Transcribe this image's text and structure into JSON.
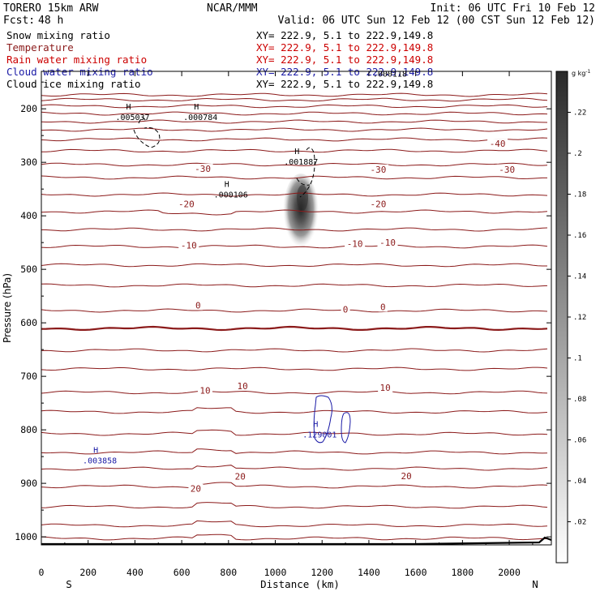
{
  "header": {
    "left_title": "TORERO  15km ARW",
    "center_title": "NCAR/MMM",
    "init": "Init: 06 UTC Fri 10 Feb 12",
    "fcst_label": "Fcst:",
    "fcst_value": "48 h",
    "valid": "Valid: 06 UTC Sun 12 Feb 12 (00 CST Sun 12 Feb 12)"
  },
  "legend": [
    {
      "name": "Snow mixing ratio",
      "color": "#000000",
      "xy": ""
    },
    {
      "name": "Temperature",
      "color": "#8b1a1a",
      "xy": "XY= 222.9,  5.1 to 222.9,149.8"
    },
    {
      "name": "Rain water mixing ratio",
      "color": "#cc0000",
      "xy": "XY= 222.9,  5.1 to 222.9,149.8"
    },
    {
      "name": "Cloud water mixing ratio",
      "color": "#1a1aa6",
      "xy": "XY= 222.9,  5.1 to 222.9,149.8"
    },
    {
      "name": "Cloud ice mixing ratio",
      "color": "#000000",
      "xy": "XY= 222.9,  5.1 to 222.9,149.8"
    }
  ],
  "first_xy": "XY= 222.9,  5.1 to 222.9,149.8",
  "chart_data": {
    "type": "cross-section",
    "xlabel": "Distance (km)",
    "ylabel": "Pressure (hPa)",
    "xlim": [
      0,
      2180
    ],
    "ylim": [
      1015,
      130
    ],
    "x_ticks": [
      0,
      200,
      400,
      600,
      800,
      1000,
      1200,
      1400,
      1600,
      1800,
      2000
    ],
    "y_ticks": [
      200,
      300,
      400,
      500,
      600,
      700,
      800,
      900,
      1000
    ],
    "x_end_labels": {
      "left": "S",
      "right": "N"
    },
    "colorbar": {
      "units": "g kg",
      "units_exp": "-1",
      "ticks": [
        ".02",
        ".04",
        ".06",
        ".08",
        ".1",
        ".12",
        ".14",
        ".16",
        ".18",
        ".2",
        ".22"
      ],
      "tick_values": [
        0.02,
        0.04,
        0.06,
        0.08,
        0.1,
        0.12,
        0.14,
        0.16,
        0.18,
        0.2,
        0.22
      ],
      "min": 0.0,
      "max": 0.24
    },
    "temperature_labels": [
      {
        "text": "-40",
        "x": 1950,
        "p": 265
      },
      {
        "text": "-30",
        "x": 690,
        "p": 312
      },
      {
        "text": "-30",
        "x": 1440,
        "p": 313
      },
      {
        "text": "-30",
        "x": 1990,
        "p": 313
      },
      {
        "text": "-20",
        "x": 620,
        "p": 378
      },
      {
        "text": "-20",
        "x": 1440,
        "p": 378
      },
      {
        "text": "-10",
        "x": 630,
        "p": 455
      },
      {
        "text": "-10",
        "x": 1340,
        "p": 452
      },
      {
        "text": "-10",
        "x": 1480,
        "p": 450
      },
      {
        "text": "0",
        "x": 670,
        "p": 567
      },
      {
        "text": "0",
        "x": 1300,
        "p": 575
      },
      {
        "text": "0",
        "x": 1460,
        "p": 570
      },
      {
        "text": "10",
        "x": 700,
        "p": 726
      },
      {
        "text": "10",
        "x": 860,
        "p": 718
      },
      {
        "text": "10",
        "x": 1470,
        "p": 721
      },
      {
        "text": "20",
        "x": 850,
        "p": 887
      },
      {
        "text": "20",
        "x": 1560,
        "p": 886
      },
      {
        "text": "20",
        "x": 660,
        "p": 910
      }
    ],
    "maxima": [
      {
        "text": ".005037",
        "x": 390,
        "p": 213,
        "color": "#000000"
      },
      {
        "text": ".000784",
        "x": 680,
        "p": 213,
        "color": "#000000"
      },
      {
        "text": ".001887",
        "x": 1110,
        "p": 297,
        "color": "#000000"
      },
      {
        "text": ".000106",
        "x": 810,
        "p": 358,
        "color": "#000000"
      },
      {
        "text": ".000118",
        "x": 1490,
        "p": 132,
        "color": "#000000"
      },
      {
        "text": ".129001",
        "x": 1190,
        "p": 807,
        "color": "#1a1aa6"
      },
      {
        "text": ".003858",
        "x": 250,
        "p": 855,
        "color": "#1a1aa6"
      }
    ]
  }
}
